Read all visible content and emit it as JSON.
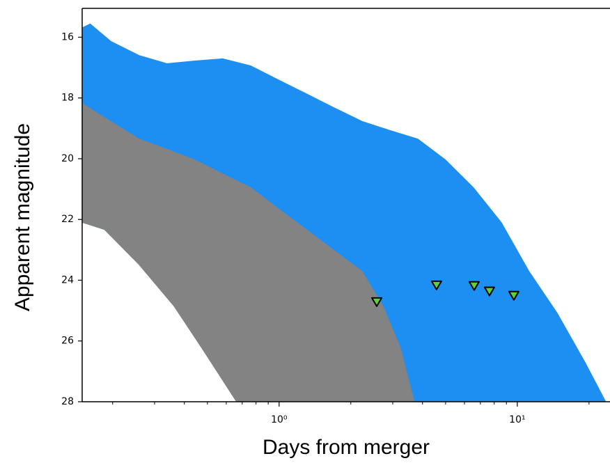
{
  "chart_data": {
    "type": "band",
    "xlabel": "Days from merger",
    "ylabel": "Apparent magnitude",
    "xscale": "log",
    "xlim": [
      0.149,
      24.5
    ],
    "ylim": [
      28,
      15.05
    ],
    "xticks": [
      {
        "value": 1,
        "label": "10⁰"
      },
      {
        "value": 10,
        "label": "10¹"
      }
    ],
    "xminorticks": [
      0.2,
      0.3,
      0.4,
      0.5,
      0.6,
      0.7,
      0.8,
      0.9,
      2,
      3,
      4,
      5,
      6,
      7,
      8,
      9,
      20
    ],
    "yticks": [
      16,
      18,
      20,
      22,
      24,
      26,
      28
    ],
    "bands": [
      {
        "color": "#1e8ff2",
        "upper": {
          "x": [
            0.15,
            0.161,
            0.197,
            0.258,
            0.338,
            0.443,
            0.58,
            0.759,
            0.99,
            1.3,
            1.7,
            2.23,
            2.92,
            3.82,
            5.0,
            6.54,
            8.57,
            11.2,
            14.7,
            19.2,
            23.5
          ],
          "y": [
            15.68,
            15.56,
            16.14,
            16.6,
            16.87,
            16.78,
            16.71,
            16.94,
            17.4,
            17.86,
            18.32,
            18.77,
            19.07,
            19.35,
            20.04,
            20.95,
            22.1,
            23.71,
            25.08,
            26.69,
            28
          ]
        },
        "lower": {
          "x": [
            0.15,
            0.185,
            0.258,
            0.362,
            0.474,
            0.663,
            23.5
          ],
          "y": [
            22.1,
            22.33,
            23.48,
            24.85,
            26.23,
            28,
            28
          ]
        }
      },
      {
        "color": "#838383",
        "upper": {
          "x": [
            0.15,
            0.197,
            0.258,
            0.338,
            0.443,
            0.58,
            0.759,
            0.99,
            1.3,
            1.7,
            2.23,
            2.73,
            3.23,
            3.69
          ],
          "y": [
            18.2,
            18.78,
            19.35,
            19.69,
            20.04,
            20.5,
            20.95,
            21.64,
            22.33,
            23.02,
            23.71,
            24.85,
            26.23,
            28
          ]
        },
        "lower": {
          "x": [
            0.15,
            0.185,
            0.258,
            0.362,
            0.474,
            0.663,
            3.69
          ],
          "y": [
            22.1,
            22.33,
            23.48,
            24.85,
            26.23,
            28,
            28
          ]
        }
      }
    ],
    "markers": {
      "color": "#5fcf3a",
      "x": [
        2.57,
        4.58,
        6.59,
        7.64,
        9.67
      ],
      "y": [
        24.72,
        24.17,
        24.19,
        24.37,
        24.51
      ]
    }
  }
}
